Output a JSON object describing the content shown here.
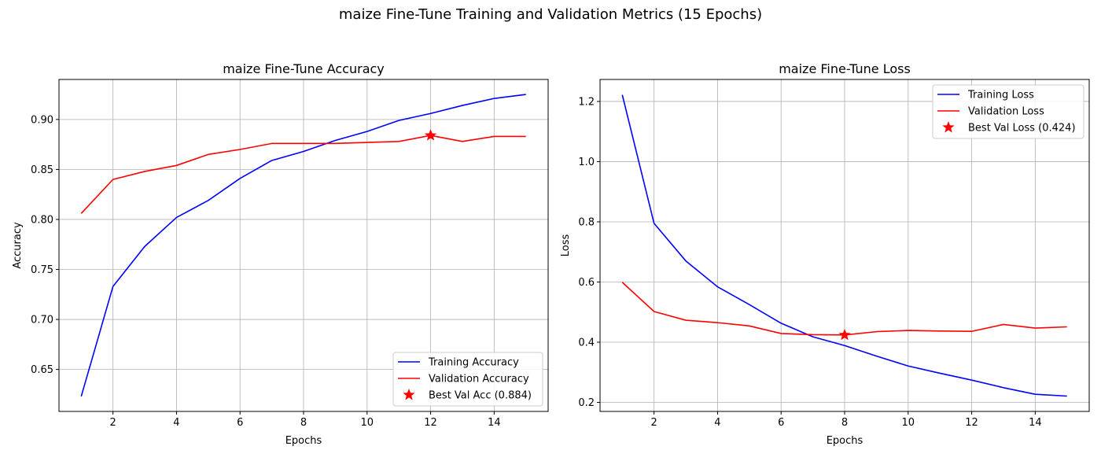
{
  "suptitle": "maize Fine-Tune Training and Validation Metrics (15 Epochs)",
  "chart_data": [
    {
      "type": "line",
      "title": "maize Fine-Tune Accuracy",
      "xlabel": "Epochs",
      "ylabel": "Accuracy",
      "x": [
        1,
        2,
        3,
        4,
        5,
        6,
        7,
        8,
        9,
        10,
        11,
        12,
        13,
        14,
        15
      ],
      "xlim": [
        0.3,
        15.7
      ],
      "ylim": [
        0.608,
        0.94
      ],
      "xticks": [
        2,
        4,
        6,
        8,
        10,
        12,
        14
      ],
      "yticks": [
        0.65,
        0.7,
        0.75,
        0.8,
        0.85,
        0.9
      ],
      "ytick_labels": [
        "0.65",
        "0.70",
        "0.75",
        "0.80",
        "0.85",
        "0.90"
      ],
      "grid": true,
      "legend_loc": "lower-right",
      "series": [
        {
          "name": "Training Accuracy",
          "color": "#0000ff",
          "values": [
            0.623,
            0.733,
            0.773,
            0.802,
            0.819,
            0.841,
            0.859,
            0.868,
            0.879,
            0.888,
            0.899,
            0.906,
            0.914,
            0.921,
            0.925
          ]
        },
        {
          "name": "Validation Accuracy",
          "color": "#ff0000",
          "values": [
            0.806,
            0.84,
            0.848,
            0.854,
            0.865,
            0.87,
            0.876,
            0.876,
            0.876,
            0.877,
            0.878,
            0.884,
            0.878,
            0.883,
            0.883
          ]
        }
      ],
      "best_point": {
        "name": "Best Val Acc (0.884)",
        "x": 12,
        "y": 0.884,
        "color": "#ff0000",
        "marker": "star"
      }
    },
    {
      "type": "line",
      "title": "maize Fine-Tune Loss",
      "xlabel": "Epochs",
      "ylabel": "Loss",
      "x": [
        1,
        2,
        3,
        4,
        5,
        6,
        7,
        8,
        9,
        10,
        11,
        12,
        13,
        14,
        15
      ],
      "xlim": [
        0.3,
        15.7
      ],
      "ylim": [
        0.17,
        1.273
      ],
      "xticks": [
        2,
        4,
        6,
        8,
        10,
        12,
        14
      ],
      "yticks": [
        0.2,
        0.4,
        0.6,
        0.8,
        1.0,
        1.2
      ],
      "ytick_labels": [
        "0.2",
        "0.4",
        "0.6",
        "0.8",
        "1.0",
        "1.2"
      ],
      "grid": true,
      "legend_loc": "upper-right",
      "series": [
        {
          "name": "Training Loss",
          "color": "#0000ff",
          "values": [
            1.222,
            0.795,
            0.67,
            0.584,
            0.525,
            0.463,
            0.418,
            0.389,
            0.354,
            0.321,
            0.297,
            0.274,
            0.249,
            0.227,
            0.221
          ]
        },
        {
          "name": "Validation Loss",
          "color": "#ff0000",
          "values": [
            0.599,
            0.502,
            0.473,
            0.465,
            0.454,
            0.429,
            0.425,
            0.424,
            0.435,
            0.439,
            0.437,
            0.436,
            0.459,
            0.447,
            0.451
          ]
        }
      ],
      "best_point": {
        "name": "Best Val Loss (0.424)",
        "x": 8,
        "y": 0.424,
        "color": "#ff0000",
        "marker": "star"
      }
    }
  ]
}
